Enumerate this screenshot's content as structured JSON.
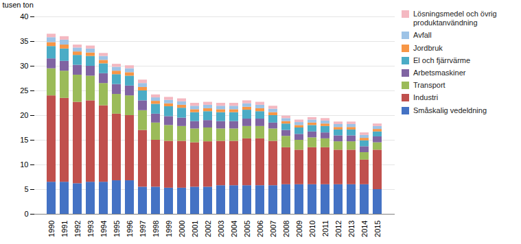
{
  "chart_data": {
    "type": "bar",
    "stacked": true,
    "ylabel": "tusen ton",
    "categories": [
      "1990",
      "1991",
      "1992",
      "1993",
      "1994",
      "1995",
      "1996",
      "1997",
      "1998",
      "1999",
      "2000",
      "2001",
      "2002",
      "2003",
      "2004",
      "2005",
      "2006",
      "2007",
      "2008",
      "2009",
      "2010",
      "2011",
      "2012",
      "2013",
      "2014",
      "2015"
    ],
    "series": [
      {
        "name": "Småskalig vedeldning",
        "color": "#4472C4",
        "values": [
          6.5,
          6.5,
          6.2,
          6.5,
          6.5,
          6.8,
          6.8,
          5.5,
          5.5,
          5.3,
          5.3,
          5.5,
          5.5,
          5.8,
          5.8,
          5.8,
          5.8,
          5.8,
          6.0,
          6.0,
          6.0,
          6.0,
          6.0,
          6.0,
          6.0,
          5.0
        ]
      },
      {
        "name": "Industri",
        "color": "#C0504D",
        "values": [
          17.5,
          17.0,
          16.5,
          16.5,
          15.5,
          13.5,
          13.2,
          11.5,
          9.5,
          9.5,
          9.5,
          9.0,
          9.2,
          9.0,
          9.0,
          9.5,
          9.5,
          9.0,
          7.5,
          7.0,
          7.5,
          7.5,
          7.0,
          7.0,
          5.0,
          8.0
        ]
      },
      {
        "name": "Transport",
        "color": "#9BBB59",
        "values": [
          5.5,
          5.5,
          5.5,
          5.0,
          4.5,
          4.0,
          4.0,
          4.0,
          3.5,
          3.2,
          3.0,
          2.8,
          2.8,
          2.5,
          2.5,
          2.5,
          2.5,
          2.5,
          2.3,
          2.0,
          2.0,
          1.8,
          1.7,
          1.7,
          1.5,
          1.5
        ]
      },
      {
        "name": "Arbetsmaskiner",
        "color": "#8064A2",
        "values": [
          2.0,
          2.0,
          2.0,
          2.0,
          2.0,
          2.0,
          2.0,
          2.0,
          1.8,
          1.8,
          1.7,
          1.5,
          1.5,
          1.5,
          1.5,
          1.5,
          1.5,
          1.2,
          1.2,
          1.2,
          1.2,
          1.2,
          1.2,
          1.2,
          1.2,
          1.2
        ]
      },
      {
        "name": "El och fjärrvärme",
        "color": "#4BACC6",
        "values": [
          2.5,
          2.5,
          2.0,
          2.0,
          2.0,
          2.0,
          2.0,
          2.0,
          2.0,
          2.0,
          2.0,
          1.8,
          1.8,
          1.8,
          1.8,
          1.8,
          1.5,
          1.5,
          1.3,
          1.3,
          1.3,
          1.3,
          1.2,
          1.2,
          1.2,
          1.0
        ]
      },
      {
        "name": "Jordbruk",
        "color": "#F79646",
        "values": [
          0.8,
          0.8,
          0.7,
          0.7,
          0.7,
          0.7,
          0.7,
          0.7,
          0.6,
          0.6,
          0.6,
          0.6,
          0.6,
          0.6,
          0.6,
          0.6,
          0.6,
          0.6,
          0.5,
          0.5,
          0.5,
          0.5,
          0.5,
          0.5,
          0.5,
          0.5
        ]
      },
      {
        "name": "Avfall",
        "color": "#9DC3E6",
        "values": [
          1.0,
          1.0,
          0.8,
          0.8,
          0.8,
          0.8,
          0.8,
          0.8,
          0.7,
          0.7,
          0.7,
          0.7,
          0.7,
          0.7,
          0.7,
          0.7,
          0.7,
          0.7,
          0.6,
          0.6,
          0.6,
          0.6,
          0.6,
          0.6,
          0.6,
          0.6
        ]
      },
      {
        "name": "Lösningsmedel och övrig\nproduktanvändning",
        "color": "#F4B8C1",
        "values": [
          0.7,
          0.7,
          0.6,
          0.6,
          0.6,
          0.6,
          0.6,
          0.7,
          0.6,
          0.6,
          0.6,
          0.6,
          0.6,
          0.6,
          0.6,
          0.6,
          0.6,
          0.6,
          0.5,
          0.5,
          0.5,
          0.5,
          0.5,
          0.5,
          0.5,
          0.5
        ]
      }
    ],
    "ylim": [
      0,
      40
    ],
    "yticks": [
      0,
      5,
      10,
      15,
      20,
      25,
      30,
      35,
      40
    ],
    "grid": true,
    "legend": "right"
  }
}
